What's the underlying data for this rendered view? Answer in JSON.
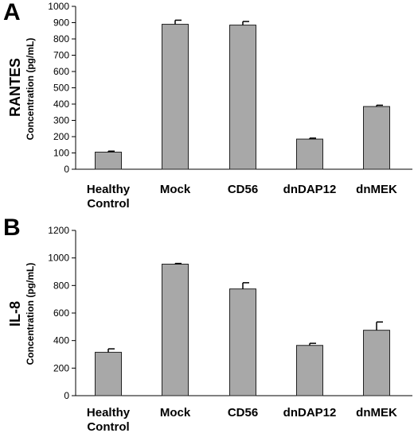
{
  "figure": {
    "panels": [
      {
        "letter": "A",
        "category_title": "RANTES",
        "axis_title": "Concentration (pg/mL)"
      },
      {
        "letter": "B",
        "category_title": "IL-8",
        "axis_title": "Concentration (pg/mL)"
      }
    ]
  },
  "chart_data": [
    {
      "type": "bar",
      "panel": "A",
      "title": "",
      "ylabel": "Concentration (pg/mL)",
      "category_title": "RANTES",
      "categories": [
        [
          "Healthy",
          "Control"
        ],
        [
          "Mock"
        ],
        [
          "CD56"
        ],
        [
          "dnDAP12"
        ],
        [
          "dnMEK"
        ]
      ],
      "values": [
        105,
        890,
        885,
        185,
        385
      ],
      "errors": [
        6,
        25,
        22,
        6,
        8
      ],
      "ylim": [
        0,
        1000
      ],
      "yticks": [
        0,
        100,
        200,
        300,
        400,
        500,
        600,
        700,
        800,
        900,
        1000
      ],
      "grid": false,
      "bar_color": "#a8a8a8"
    },
    {
      "type": "bar",
      "panel": "B",
      "title": "",
      "ylabel": "Concentration (pg/mL)",
      "category_title": "IL-8",
      "categories": [
        [
          "Healthy",
          "Control"
        ],
        [
          "Mock"
        ],
        [
          "CD56"
        ],
        [
          "dnDAP12"
        ],
        [
          "dnMEK"
        ]
      ],
      "values": [
        315,
        955,
        775,
        365,
        475
      ],
      "errors": [
        25,
        5,
        45,
        15,
        60
      ],
      "ylim": [
        0,
        1200
      ],
      "yticks": [
        0,
        200,
        400,
        600,
        800,
        1000,
        1200
      ],
      "grid": false,
      "bar_color": "#a8a8a8"
    }
  ]
}
